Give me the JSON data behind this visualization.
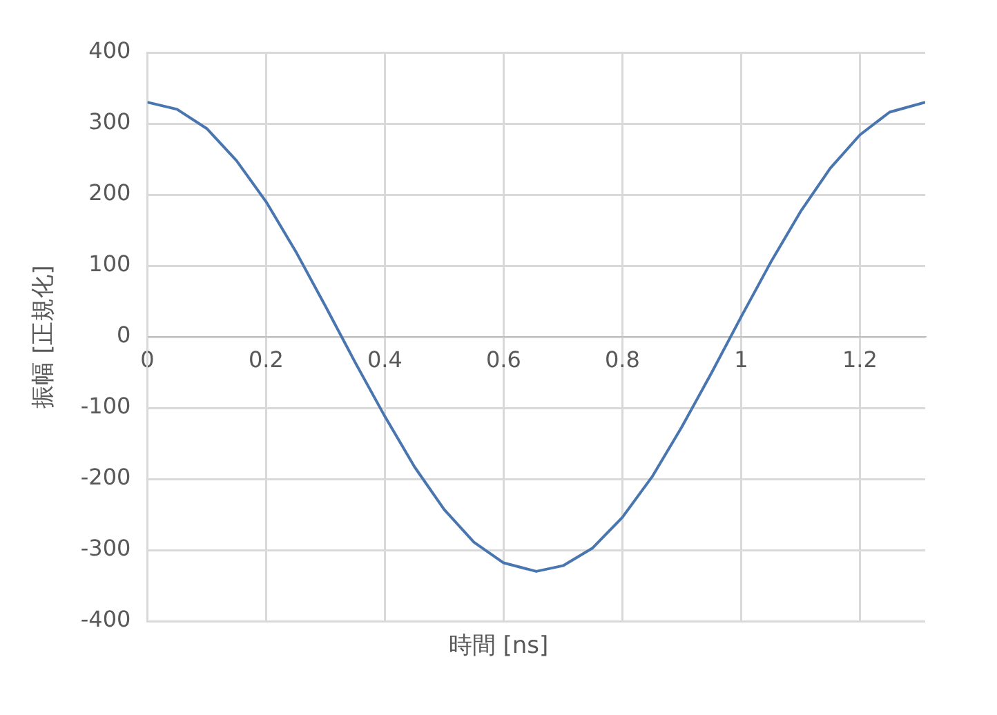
{
  "chart_data": {
    "type": "line",
    "xlabel": "時間 [ns]",
    "ylabel": "振幅 [正規化]",
    "x": [
      0,
      0.05,
      0.1,
      0.15,
      0.2,
      0.25,
      0.3,
      0.35,
      0.4,
      0.45,
      0.5,
      0.55,
      0.6,
      0.655,
      0.7,
      0.75,
      0.8,
      0.85,
      0.9,
      0.95,
      1.0,
      1.05,
      1.1,
      1.15,
      1.2,
      1.25,
      1.31
    ],
    "series": [
      {
        "color": "#4a76b0",
        "values": [
          330,
          320,
          293,
          248,
          190,
          120,
          43,
          -36,
          -112,
          -183,
          -243,
          -289,
          -318,
          -330,
          -322,
          -297,
          -254,
          -197,
          -127,
          -51,
          28,
          105,
          176,
          237,
          284,
          316,
          330
        ]
      }
    ],
    "xlim": [
      0,
      1.31
    ],
    "xticks": [
      0,
      0.2,
      0.4,
      0.6,
      0.8,
      1,
      1.2
    ],
    "ylim": [
      -400,
      400
    ],
    "yticks": [
      -400,
      -300,
      -200,
      -100,
      0,
      100,
      200,
      300,
      400
    ],
    "grid": true,
    "marker": "none"
  }
}
